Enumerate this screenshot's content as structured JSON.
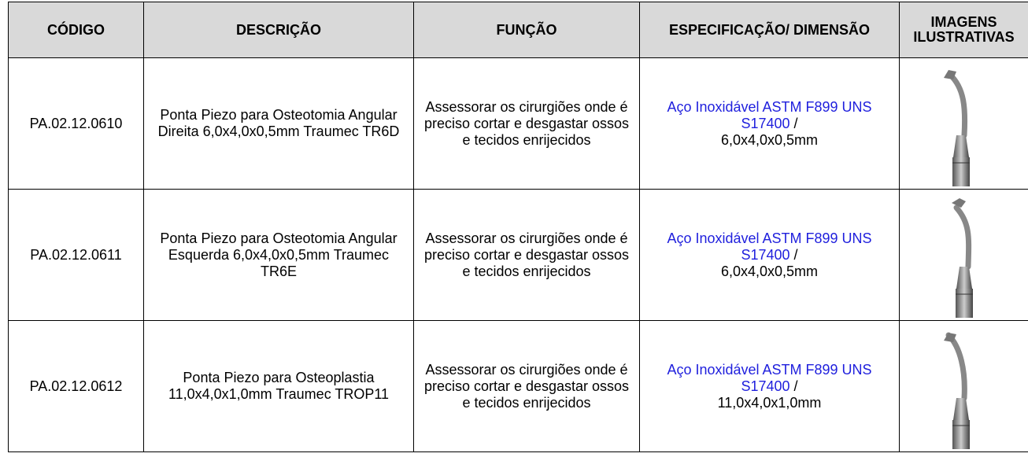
{
  "table": {
    "headers": [
      "CÓDIGO",
      "DESCRIÇÃO",
      "FUNÇÃO",
      "ESPECIFICAÇÃO/ DIMENSÃO",
      "IMAGENS ILUSTRATIVAS"
    ],
    "rows": [
      {
        "code": "PA.02.12.0610",
        "description": "Ponta Piezo para Osteotomia Angular Direita 6,0x4,0x0,5mm Traumec TR6D",
        "function": "Assessorar os cirurgiões onde é preciso cortar e desgastar ossos e tecidos enrijecidos",
        "material": "Aço Inoxidável ASTM F899 UNS S17400",
        "separator": "/",
        "dimension": "6,0x4,0x0,5mm"
      },
      {
        "code": "PA.02.12.0611",
        "description": "Ponta Piezo para Osteotomia Angular Esquerda 6,0x4,0x0,5mm Traumec TR6E",
        "function": "Assessorar os cirurgiões onde é preciso cortar e desgastar ossos e tecidos enrijecidos",
        "material": "Aço Inoxidável ASTM F899 UNS S17400",
        "separator": "/",
        "dimension": "6,0x4,0x0,5mm"
      },
      {
        "code": "PA.02.12.0612",
        "description": "Ponta Piezo para Osteoplastia 11,0x4,0x1,0mm Traumec TROP11",
        "function": "Assessorar os cirurgiões onde é preciso cortar e desgastar ossos e tecidos enrijecidos",
        "material": "Aço Inoxidável ASTM F899 UNS S17400",
        "separator": "/",
        "dimension": "11,0x4,0x1,0mm"
      }
    ]
  }
}
